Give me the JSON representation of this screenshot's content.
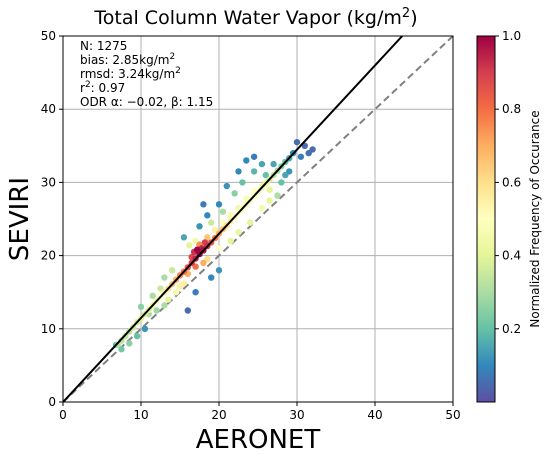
{
  "chart_data": {
    "type": "scatter",
    "title_main": "Total Column Water Vapor (kg/m",
    "title_sup": "2",
    "title_tail": ")",
    "xlabel": "AERONET",
    "ylabel": "SEVIRI",
    "xlim": [
      0,
      50
    ],
    "ylim": [
      0,
      50
    ],
    "xticks": [
      0,
      10,
      20,
      30,
      40,
      50
    ],
    "yticks": [
      0,
      10,
      20,
      30,
      40,
      50
    ],
    "grid": true,
    "stats": {
      "n": "N: 1275",
      "bias_main": "bias: 2.85kg/m",
      "bias_sup": "2",
      "rmsd_main": "rmsd: 3.24kg/m",
      "rmsd_sup": "2",
      "r2_r": "r",
      "r2_sup": "2",
      "r2_main": ": 0.97",
      "odr": "ODR α: −0.02, β: 1.15"
    },
    "fit_line": {
      "alpha": -0.02,
      "beta": 1.15,
      "style": "solid",
      "color": "#000000"
    },
    "one_to_one": {
      "style": "dashed",
      "color": "#808080"
    },
    "colorbar": {
      "label": "Normalized Frequency of Occurance",
      "ticks": [
        0.2,
        0.4,
        0.6,
        0.8,
        1.0
      ],
      "tick_labels": [
        "0.2",
        "0.4",
        "0.6",
        "0.8",
        "1.0"
      ],
      "cmap": "Spectral_r",
      "stops": [
        "#5e4fa2",
        "#3288bd",
        "#66c2a5",
        "#abdda4",
        "#e6f598",
        "#ffffbf",
        "#fee08b",
        "#fdae61",
        "#f46d43",
        "#d53e4f",
        "#9e0142"
      ]
    },
    "points": [
      [
        7.0,
        7.8,
        0.3
      ],
      [
        7.5,
        8.4,
        0.32
      ],
      [
        8.0,
        9.0,
        0.35
      ],
      [
        8.5,
        9.6,
        0.33
      ],
      [
        9.0,
        10.2,
        0.36
      ],
      [
        9.5,
        10.9,
        0.38
      ],
      [
        10.0,
        11.4,
        0.4
      ],
      [
        10.5,
        12.0,
        0.38
      ],
      [
        11.0,
        12.6,
        0.4
      ],
      [
        11.5,
        13.2,
        0.42
      ],
      [
        12.0,
        13.8,
        0.45
      ],
      [
        12.5,
        14.4,
        0.5
      ],
      [
        13.0,
        15.0,
        0.55
      ],
      [
        13.5,
        15.5,
        0.6
      ],
      [
        14.0,
        16.1,
        0.65
      ],
      [
        14.5,
        16.7,
        0.7
      ],
      [
        15.0,
        17.3,
        0.75
      ],
      [
        15.5,
        17.8,
        0.8
      ],
      [
        16.0,
        18.4,
        0.85
      ],
      [
        16.5,
        19.0,
        0.9
      ],
      [
        17.0,
        19.6,
        0.95
      ],
      [
        17.5,
        20.2,
        1.0
      ],
      [
        18.0,
        20.7,
        0.98
      ],
      [
        18.5,
        21.3,
        0.92
      ],
      [
        19.0,
        21.8,
        0.85
      ],
      [
        19.5,
        22.4,
        0.78
      ],
      [
        20.0,
        23.0,
        0.7
      ],
      [
        20.5,
        23.6,
        0.65
      ],
      [
        21.0,
        24.1,
        0.6
      ],
      [
        21.5,
        24.7,
        0.55
      ],
      [
        22.0,
        25.3,
        0.52
      ],
      [
        22.5,
        25.9,
        0.5
      ],
      [
        23.0,
        26.4,
        0.48
      ],
      [
        23.5,
        27.0,
        0.47
      ],
      [
        24.0,
        27.6,
        0.48
      ],
      [
        24.5,
        28.1,
        0.5
      ],
      [
        25.0,
        28.7,
        0.48
      ],
      [
        25.5,
        29.3,
        0.45
      ],
      [
        26.0,
        29.9,
        0.42
      ],
      [
        26.5,
        30.4,
        0.38
      ],
      [
        27.0,
        31.0,
        0.34
      ],
      [
        27.5,
        31.6,
        0.3
      ],
      [
        28.0,
        32.2,
        0.25
      ],
      [
        28.5,
        32.8,
        0.2
      ],
      [
        29.0,
        33.3,
        0.15
      ],
      [
        16.2,
        21.4,
        0.4
      ],
      [
        17.0,
        22.0,
        0.45
      ],
      [
        15.5,
        16.2,
        0.55
      ],
      [
        18.5,
        19.5,
        0.6
      ],
      [
        20.0,
        21.0,
        0.5
      ],
      [
        21.5,
        22.0,
        0.4
      ],
      [
        22.5,
        23.2,
        0.42
      ],
      [
        24.0,
        24.5,
        0.4
      ],
      [
        25.5,
        26.5,
        0.45
      ],
      [
        26.5,
        27.5,
        0.4
      ],
      [
        27.5,
        28.2,
        0.3
      ],
      [
        14.0,
        18.0,
        0.35
      ],
      [
        13.0,
        17.0,
        0.3
      ],
      [
        19.0,
        24.5,
        0.35
      ],
      [
        20.5,
        26.0,
        0.3
      ],
      [
        22.0,
        28.5,
        0.25
      ],
      [
        23.0,
        30.0,
        0.2
      ],
      [
        24.5,
        31.5,
        0.18
      ],
      [
        25.5,
        32.5,
        0.15
      ],
      [
        21.0,
        29.5,
        0.12
      ],
      [
        22.5,
        31.5,
        0.1
      ],
      [
        23.5,
        33.0,
        0.1
      ],
      [
        24.5,
        33.5,
        0.08
      ],
      [
        18.0,
        27.0,
        0.08
      ],
      [
        15.5,
        22.5,
        0.15
      ],
      [
        13.0,
        13.2,
        0.3
      ],
      [
        12.0,
        12.5,
        0.28
      ],
      [
        11.0,
        12.0,
        0.3
      ],
      [
        10.5,
        10.0,
        0.12
      ],
      [
        9.5,
        9.0,
        0.2
      ],
      [
        8.5,
        8.0,
        0.25
      ],
      [
        7.5,
        7.2,
        0.22
      ],
      [
        6.8,
        7.8,
        0.18
      ],
      [
        28.0,
        30.0,
        0.2
      ],
      [
        28.5,
        31.0,
        0.15
      ],
      [
        29.0,
        31.5,
        0.12
      ],
      [
        29.5,
        34.0,
        0.1
      ],
      [
        30.0,
        35.5,
        0.05
      ],
      [
        31.0,
        35.0,
        0.05
      ],
      [
        32.0,
        34.5,
        0.05
      ],
      [
        30.5,
        33.5,
        0.08
      ],
      [
        31.5,
        34.0,
        0.06
      ],
      [
        16.0,
        12.5,
        0.05
      ],
      [
        17.0,
        15.0,
        0.08
      ],
      [
        19.0,
        17.0,
        0.1
      ],
      [
        20.0,
        18.0,
        0.12
      ],
      [
        18.5,
        25.5,
        0.1
      ],
      [
        17.5,
        24.0,
        0.12
      ],
      [
        20.0,
        27.0,
        0.1
      ],
      [
        26.0,
        31.0,
        0.2
      ],
      [
        27.0,
        32.5,
        0.15
      ],
      [
        10.0,
        13.0,
        0.25
      ],
      [
        11.5,
        14.5,
        0.3
      ],
      [
        12.5,
        15.5,
        0.35
      ],
      [
        13.5,
        14.0,
        0.4
      ],
      [
        14.5,
        15.0,
        0.45
      ],
      [
        15.0,
        15.8,
        0.55
      ],
      [
        16.0,
        17.5,
        0.7
      ],
      [
        17.0,
        18.5,
        0.8
      ],
      [
        18.0,
        19.0,
        0.7
      ],
      [
        17.5,
        21.5,
        0.75
      ],
      [
        18.5,
        22.5,
        0.65
      ],
      [
        19.5,
        23.5,
        0.55
      ],
      [
        20.5,
        24.5,
        0.5
      ],
      [
        21.5,
        25.5,
        0.45
      ],
      [
        22.5,
        26.5,
        0.45
      ],
      [
        23.5,
        27.8,
        0.48
      ],
      [
        24.5,
        28.8,
        0.5
      ],
      [
        25.5,
        29.5,
        0.45
      ],
      [
        26.5,
        29.0,
        0.4
      ],
      [
        16.8,
        20.5,
        0.92
      ],
      [
        17.8,
        21.0,
        0.95
      ],
      [
        18.2,
        21.8,
        0.9
      ],
      [
        16.5,
        19.8,
        0.88
      ],
      [
        17.2,
        20.8,
        1.0
      ]
    ]
  }
}
